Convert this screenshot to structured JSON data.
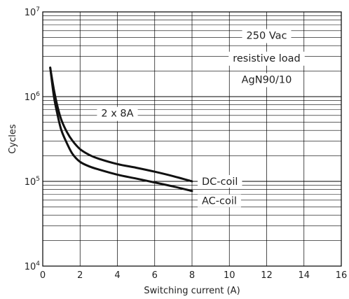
{
  "chart_data": {
    "type": "line",
    "xlabel": "Switching current (A)",
    "ylabel": "Cycles",
    "xlim": [
      0,
      16
    ],
    "ylim": [
      10000,
      10000000
    ],
    "y_scale": "log",
    "grid": true,
    "x_ticks": [
      "0",
      "2",
      "4",
      "6",
      "8",
      "10",
      "12",
      "14",
      "16"
    ],
    "y_ticks": [
      {
        "base": "10",
        "exp": "4"
      },
      {
        "base": "10",
        "exp": "5"
      },
      {
        "base": "10",
        "exp": "6"
      },
      {
        "base": "10",
        "exp": "7"
      }
    ],
    "series": [
      {
        "name": "DC-coil",
        "x": [
          0.4,
          0.6,
          0.8,
          1.0,
          1.3,
          1.6,
          2.0,
          2.5,
          3.0,
          4.0,
          5.0,
          6.0,
          7.0,
          8.0
        ],
        "y": [
          2200000,
          1200000,
          750000,
          530000,
          380000,
          300000,
          240000,
          205000,
          185000,
          160000,
          145000,
          130000,
          115000,
          100000
        ]
      },
      {
        "name": "AC-coil",
        "x": [
          0.4,
          0.6,
          0.8,
          1.0,
          1.3,
          1.6,
          2.0,
          2.5,
          3.0,
          4.0,
          5.0,
          6.0,
          7.0,
          8.0
        ],
        "y": [
          2200000,
          1000000,
          600000,
          400000,
          280000,
          210000,
          170000,
          150000,
          138000,
          120000,
          108000,
          97000,
          87000,
          77000
        ]
      }
    ],
    "annotations": [
      {
        "text": "250 Vac",
        "x": 12,
        "y": 4800000
      },
      {
        "text": "resistive load",
        "x": 12,
        "y": 2600000
      },
      {
        "text": "AgN90/10",
        "x": 12,
        "y": 1450000
      },
      {
        "text": "2 x 8A",
        "x": 4.0,
        "y": 580000
      }
    ]
  }
}
